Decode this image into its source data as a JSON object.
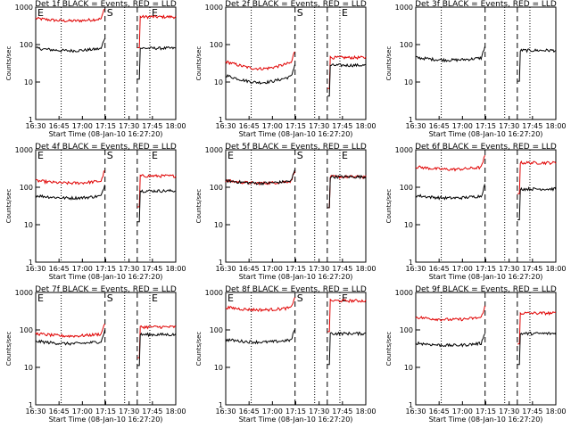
{
  "chart_data": {
    "type": "line",
    "x_ticks": [
      "16:30",
      "16:45",
      "17:00",
      "17:15",
      "17:30",
      "17:45",
      "18:00"
    ],
    "xlabel": "Start Time (08-Jan-10 16:27:20)",
    "ylabel": "Counts/sec",
    "y_ticks": [
      "1",
      "10",
      "100",
      "1000"
    ],
    "ylim": [
      1,
      1000
    ],
    "y_scale": "log",
    "marker_labels": [
      "E",
      "S",
      "E"
    ],
    "panels": [
      {
        "title": "Det 1f BLACK = Events, RED = LLD",
        "markers": [
          "E",
          "S",
          "E"
        ],
        "events": {
          "before": 80,
          "after": 80
        },
        "lld": {
          "before": 500,
          "after": 550
        }
      },
      {
        "title": "Det 2f BLACK = Events, RED = LLD",
        "markers": [
          "",
          "S",
          "E"
        ],
        "events": {
          "before": 15,
          "after": 28
        },
        "lld": {
          "before": 35,
          "after": 45
        }
      },
      {
        "title": "Det 3f BLACK = Events, RED = LLD",
        "markers": [
          "",
          "",
          ""
        ],
        "events": {
          "before": 45,
          "after": 70
        },
        "lld": null
      },
      {
        "title": "Det 4f BLACK = Events, RED = LLD",
        "markers": [
          "E",
          "S",
          "E"
        ],
        "events": {
          "before": 60,
          "after": 80
        },
        "lld": {
          "before": 150,
          "after": 200
        }
      },
      {
        "title": "Det 5f BLACK = Events, RED = LLD",
        "markers": [
          "E",
          "S",
          "E"
        ],
        "events": {
          "before": 150,
          "after": 190
        },
        "lld": {
          "before": 150,
          "after": 190
        }
      },
      {
        "title": "Det 6f BLACK = Events, RED = LLD",
        "markers": [
          "",
          "",
          ""
        ],
        "events": {
          "before": 60,
          "after": 90
        },
        "lld": {
          "before": 350,
          "after": 450
        }
      },
      {
        "title": "Det 7f BLACK = Events, RED = LLD",
        "markers": [
          "E",
          "S",
          "E"
        ],
        "events": {
          "before": 50,
          "after": 75
        },
        "lld": {
          "before": 80,
          "after": 120
        }
      },
      {
        "title": "Det 8f BLACK = Events, RED = LLD",
        "markers": [
          "E",
          "S",
          "E"
        ],
        "events": {
          "before": 55,
          "after": 80
        },
        "lld": {
          "before": 400,
          "after": 600
        }
      },
      {
        "title": "Det 9f BLACK = Events, RED = LLD",
        "markers": [
          "",
          "",
          ""
        ],
        "events": {
          "before": 45,
          "after": 80
        },
        "lld": {
          "before": 220,
          "after": 280
        }
      }
    ]
  }
}
